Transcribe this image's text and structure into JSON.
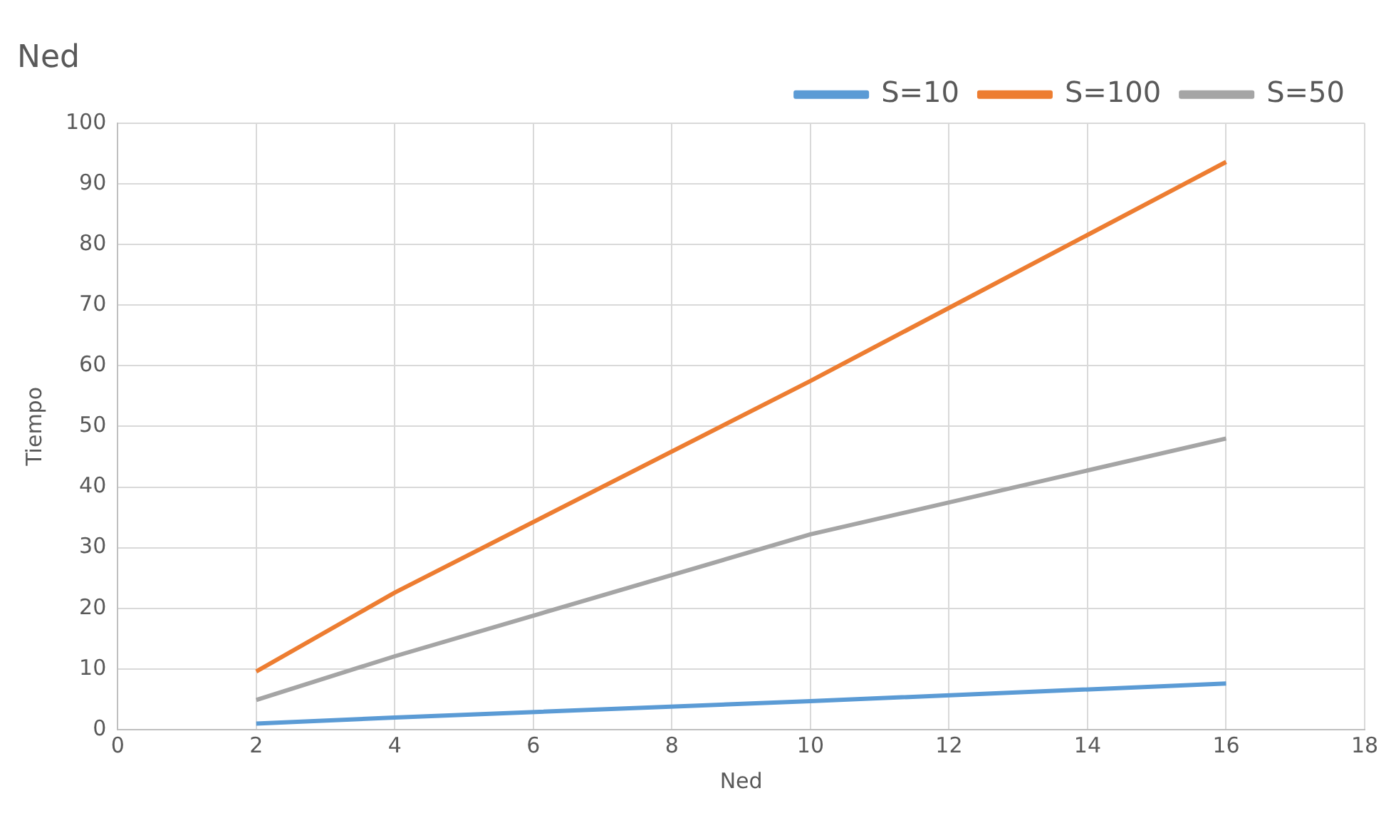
{
  "chart_data": {
    "type": "line",
    "title": "Ned",
    "xlabel": "Ned",
    "ylabel": "Tiempo",
    "x": [
      2,
      4,
      10,
      16
    ],
    "series": [
      {
        "name": "S=10",
        "color": "#5b9bd5",
        "values": [
          1.0,
          2.0,
          4.7,
          7.6
        ]
      },
      {
        "name": "S=100",
        "color": "#ed7d31",
        "values": [
          9.6,
          22.6,
          57.5,
          93.6
        ]
      },
      {
        "name": "S=50",
        "color": "#a5a5a5",
        "values": [
          4.9,
          12.1,
          32.2,
          48.0
        ]
      }
    ],
    "xlim": [
      0,
      18
    ],
    "xticks": [
      0,
      2,
      4,
      6,
      8,
      10,
      12,
      14,
      16,
      18
    ],
    "ylim": [
      0,
      100
    ],
    "yticks": [
      0,
      10,
      20,
      30,
      40,
      50,
      60,
      70,
      80,
      90,
      100
    ],
    "grid": true,
    "legend": "top right",
    "marker": "none",
    "line_style": "solid"
  }
}
